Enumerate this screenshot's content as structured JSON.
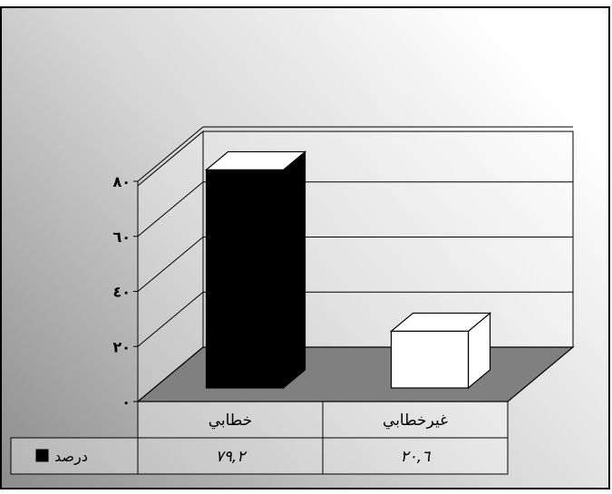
{
  "chart_data": {
    "type": "bar",
    "categories": [
      "خطابي",
      "غيرخطابي"
    ],
    "series": [
      {
        "name": "درصد",
        "values": [
          79.2,
          20.6
        ],
        "display": [
          "۷۹,۲",
          "۲۰,٦"
        ]
      }
    ],
    "ylim": [
      0,
      80
    ],
    "yticks": [
      "۰",
      "۲۰",
      "٤۰",
      "٦۰",
      "۸۰"
    ],
    "title": "",
    "xlabel": "",
    "ylabel": "",
    "grid": true,
    "legend": "table-left",
    "data_table": true,
    "colors": {
      "bar_fill": "#000000",
      "bar_2_fill": "#ffffff",
      "floor": "#808080",
      "background_light": "#ffffff",
      "background_dark": "#8c8c8c"
    }
  }
}
